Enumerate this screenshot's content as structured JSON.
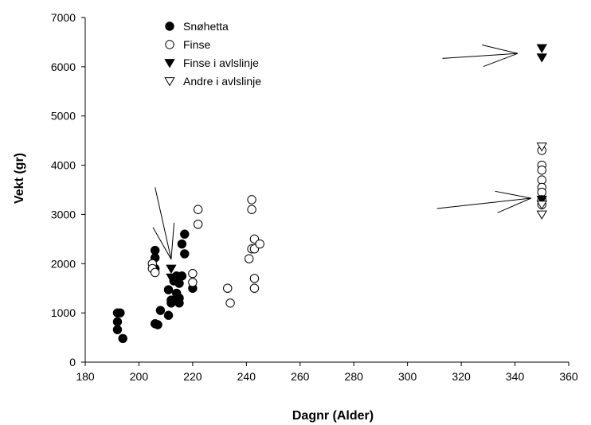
{
  "chart_data": {
    "type": "scatter",
    "title": "",
    "xlabel": "Dagnr (Alder)",
    "ylabel": "Vekt (gr)",
    "xlim": [
      180,
      360
    ],
    "ylim": [
      0,
      7000
    ],
    "xticks": [
      "180",
      "200",
      "220",
      "240",
      "260",
      "280",
      "300",
      "320",
      "340",
      "360"
    ],
    "yticks": [
      "0",
      "1000",
      "2000",
      "3000",
      "4000",
      "5000",
      "6000",
      "7000"
    ],
    "legend_position": "top-left",
    "grid": false,
    "series": [
      {
        "name": "Snøhetta",
        "marker": "filled-circle",
        "points": [
          [
            192,
            1000
          ],
          [
            193,
            1000
          ],
          [
            192,
            820
          ],
          [
            192,
            660
          ],
          [
            194,
            480
          ],
          [
            206,
            2270
          ],
          [
            206,
            2120
          ],
          [
            206,
            1900
          ],
          [
            206,
            780
          ],
          [
            207,
            760
          ],
          [
            208,
            1050
          ],
          [
            211,
            950
          ],
          [
            211,
            1470
          ],
          [
            212,
            1260
          ],
          [
            212,
            1200
          ],
          [
            213,
            1700
          ],
          [
            213,
            1650
          ],
          [
            214,
            1750
          ],
          [
            214,
            1400
          ],
          [
            215,
            1600
          ],
          [
            215,
            1300
          ],
          [
            215,
            1200
          ],
          [
            216,
            2400
          ],
          [
            216,
            1750
          ],
          [
            217,
            2600
          ],
          [
            217,
            2200
          ],
          [
            220,
            1500
          ]
        ]
      },
      {
        "name": "Finse",
        "marker": "open-circle",
        "points": [
          [
            205,
            2000
          ],
          [
            205,
            1900
          ],
          [
            206,
            1820
          ],
          [
            220,
            1800
          ],
          [
            220,
            1620
          ],
          [
            222,
            3100
          ],
          [
            222,
            2800
          ],
          [
            233,
            1500
          ],
          [
            234,
            1200
          ],
          [
            241,
            2100
          ],
          [
            242,
            3300
          ],
          [
            242,
            3100
          ],
          [
            242,
            2300
          ],
          [
            243,
            2500
          ],
          [
            243,
            2300
          ],
          [
            243,
            1700
          ],
          [
            243,
            1500
          ],
          [
            245,
            2400
          ],
          [
            350,
            4300
          ],
          [
            350,
            4000
          ],
          [
            350,
            3900
          ],
          [
            350,
            3700
          ],
          [
            350,
            3550
          ],
          [
            350,
            3450
          ],
          [
            350,
            3300
          ],
          [
            350,
            3200
          ]
        ]
      },
      {
        "name": "Finse i avlslinje",
        "marker": "filled-triangle-down",
        "points": [
          [
            212,
            1900
          ],
          [
            212,
            1720
          ],
          [
            350,
            6380
          ],
          [
            350,
            6190
          ],
          [
            350,
            3300
          ]
        ]
      },
      {
        "name": "Andre i avlslinje",
        "marker": "open-triangle-down",
        "points": [
          [
            350,
            4380
          ],
          [
            350,
            3200
          ],
          [
            350,
            3000
          ]
        ]
      }
    ],
    "annotations": [
      {
        "type": "arrow",
        "from": [
          313,
          6170
        ],
        "to": [
          341,
          6270
        ]
      },
      {
        "type": "arrow",
        "from": [
          311,
          3120
        ],
        "to": [
          346,
          3330
        ]
      },
      {
        "type": "arrow",
        "from": [
          206,
          3550
        ],
        "to": [
          212,
          2090
        ]
      }
    ]
  }
}
